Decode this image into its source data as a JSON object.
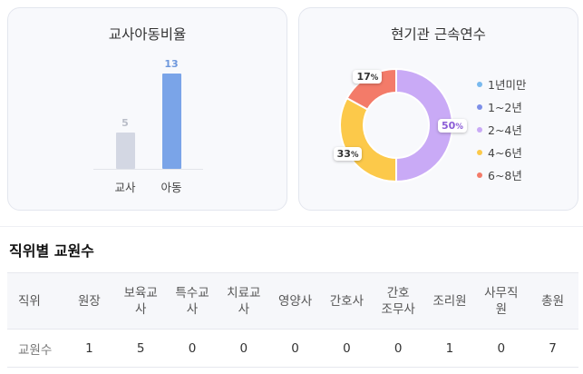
{
  "ratio_card": {
    "title": "교사아동비율",
    "chart_data": {
      "type": "bar",
      "categories": [
        "교사",
        "아동"
      ],
      "values": [
        5,
        13
      ],
      "colors": [
        "#d3d7e3",
        "#7aa4e8"
      ],
      "value_colors": [
        "#b9bdc8",
        "#6e98dd"
      ]
    }
  },
  "tenure_card": {
    "title": "현기관 근속연수",
    "chart_data": {
      "type": "pie",
      "categories": [
        "1년미만",
        "1~2년",
        "2~4년",
        "4~6년",
        "6~8년"
      ],
      "values": [
        0,
        0,
        50,
        33,
        17
      ],
      "colors": [
        "#79b9ee",
        "#7d8fe8",
        "#c9aaf6",
        "#fcc94a",
        "#f37b69"
      ],
      "labels": [
        "",
        "",
        "50",
        "33",
        "17"
      ],
      "label_colors": [
        "#333333",
        "#333333",
        "#8a5bd6",
        "#333333",
        "#333333"
      ],
      "percent_sign": "%"
    }
  },
  "staff_section": {
    "title": "직위별 교원수",
    "headers": [
      [
        "직위"
      ],
      [
        "원장"
      ],
      [
        "보육교",
        "사"
      ],
      [
        "특수교",
        "사"
      ],
      [
        "치료교",
        "사"
      ],
      [
        "영양사"
      ],
      [
        "간호사"
      ],
      [
        "간호",
        "조무사"
      ],
      [
        "조리원"
      ],
      [
        "사무직",
        "원"
      ],
      [
        "총원"
      ]
    ],
    "row_label": "교원수",
    "values": [
      "1",
      "5",
      "0",
      "0",
      "0",
      "0",
      "0",
      "1",
      "0",
      "7"
    ]
  }
}
